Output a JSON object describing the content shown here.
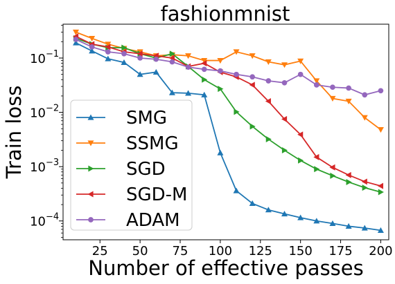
{
  "chart_data": {
    "type": "line",
    "title": "fashionmnist",
    "xlabel": "Number of effective passes",
    "ylabel": "Train loss",
    "yscale": "log",
    "xlim": [
      2,
      205
    ],
    "ylim": [
      4.5e-05,
      0.42
    ],
    "xticks": [
      25,
      50,
      75,
      100,
      125,
      150,
      175,
      200
    ],
    "xtick_labels": [
      "25",
      "50",
      "75",
      "100",
      "125",
      "150",
      "175",
      "200"
    ],
    "yticks": [
      0.0001,
      0.001,
      0.01,
      0.1
    ],
    "ytick_labels": [
      "10",
      "10",
      "10",
      "10"
    ],
    "ytick_exponents": [
      "−4",
      "−3",
      "−2",
      "−1"
    ],
    "grid": false,
    "legend_position": "lower-left",
    "x": [
      10,
      20,
      30,
      40,
      50,
      60,
      70,
      80,
      90,
      100,
      110,
      120,
      130,
      140,
      150,
      160,
      170,
      180,
      190,
      200
    ],
    "series": [
      {
        "name": "SMG",
        "color": "#1f77b4",
        "marker": "triangle-up",
        "values": [
          0.19,
          0.135,
          0.097,
          0.083,
          0.05,
          0.055,
          0.023,
          0.0225,
          0.021,
          0.0018,
          0.00036,
          0.00021,
          0.00016,
          0.000135,
          0.000115,
          0.0001,
          9e-05,
          8e-05,
          7.4e-05,
          6.7e-05
        ]
      },
      {
        "name": "SSMG",
        "color": "#ff7f0e",
        "marker": "triangle-down",
        "values": [
          0.3,
          0.23,
          0.18,
          0.15,
          0.13,
          0.11,
          0.115,
          0.11,
          0.09,
          0.09,
          0.13,
          0.11,
          0.085,
          0.075,
          0.088,
          0.038,
          0.018,
          0.016,
          0.008,
          0.0048
        ]
      },
      {
        "name": "SGD",
        "color": "#2ca02c",
        "marker": "triangle-right",
        "values": [
          0.23,
          0.18,
          0.155,
          0.155,
          0.12,
          0.1,
          0.12,
          0.07,
          0.04,
          0.027,
          0.0102,
          0.0055,
          0.0032,
          0.002,
          0.0013,
          0.0009,
          0.00068,
          0.00052,
          0.00041,
          0.00034
        ]
      },
      {
        "name": "SGD-M",
        "color": "#d62728",
        "marker": "triangle-left",
        "values": [
          0.25,
          0.18,
          0.16,
          0.13,
          0.12,
          0.11,
          0.1,
          0.07,
          0.08,
          0.055,
          0.045,
          0.032,
          0.016,
          0.0075,
          0.0039,
          0.0015,
          0.00097,
          0.0007,
          0.00053,
          0.00044
        ]
      },
      {
        "name": "ADAM",
        "color": "#9467bd",
        "marker": "circle",
        "values": [
          0.22,
          0.16,
          0.13,
          0.12,
          0.1,
          0.095,
          0.085,
          0.068,
          0.062,
          0.058,
          0.05,
          0.045,
          0.038,
          0.035,
          0.05,
          0.032,
          0.029,
          0.028,
          0.021,
          0.025
        ]
      }
    ]
  }
}
